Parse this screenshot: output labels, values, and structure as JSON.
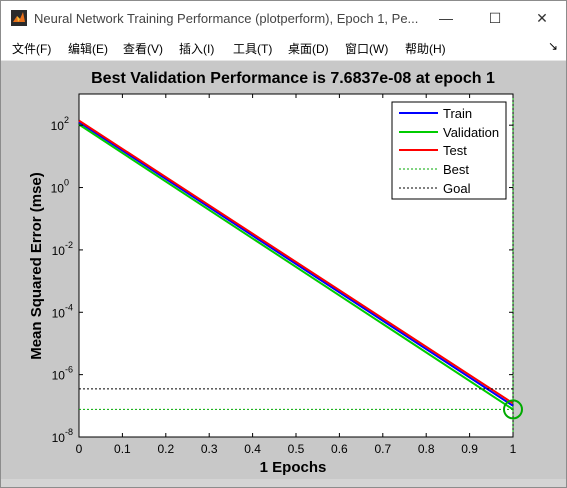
{
  "window": {
    "title": "Neural Network Training Performance (plotperform), Epoch 1, Pe...",
    "minimize_glyph": "—",
    "maximize_glyph": "☐",
    "close_glyph": "✕"
  },
  "menu": {
    "items": [
      {
        "label": "文件(F)"
      },
      {
        "label": "编辑(E)"
      },
      {
        "label": "查看(V)"
      },
      {
        "label": "插入(I)"
      },
      {
        "label": "工具(T)"
      },
      {
        "label": "桌面(D)"
      },
      {
        "label": "窗口(W)"
      },
      {
        "label": "帮助(H)"
      }
    ],
    "dock_glyph": "↘"
  },
  "chart_data": {
    "type": "line",
    "title": "Best Validation Performance is 7.6837e-08 at epoch 1",
    "xlabel": "1 Epochs",
    "ylabel": "Mean Squared Error  (mse)",
    "xscale": "linear",
    "yscale": "log",
    "xlim": [
      0,
      1
    ],
    "ylim": [
      1e-08,
      1000
    ],
    "xticks": [
      "0",
      "0.1",
      "0.2",
      "0.3",
      "0.4",
      "0.5",
      "0.6",
      "0.7",
      "0.8",
      "0.9",
      "1"
    ],
    "yticks": [
      {
        "base": "10",
        "exp": "2",
        "value": 100
      },
      {
        "base": "10",
        "exp": "0",
        "value": 1
      },
      {
        "base": "10",
        "exp": "-2",
        "value": 0.01
      },
      {
        "base": "10",
        "exp": "-4",
        "value": 0.0001
      },
      {
        "base": "10",
        "exp": "-6",
        "value": 1e-06
      },
      {
        "base": "10",
        "exp": "-8",
        "value": 1e-08
      }
    ],
    "series": [
      {
        "name": "Train",
        "color": "#0000ff",
        "style": "solid",
        "x": [
          0,
          1
        ],
        "y": [
          125,
          1e-07
        ]
      },
      {
        "name": "Validation",
        "color": "#00cc00",
        "style": "solid",
        "x": [
          0,
          1
        ],
        "y": [
          105,
          7.6837e-08
        ]
      },
      {
        "name": "Test",
        "color": "#ff0000",
        "style": "solid",
        "x": [
          0,
          1
        ],
        "y": [
          140,
          1.2e-07
        ]
      },
      {
        "name": "Best",
        "color": "#00aa00",
        "style": "dotted",
        "hline": 7.6837e-08,
        "vline": 1
      },
      {
        "name": "Goal",
        "color": "#000000",
        "style": "dotted",
        "hline": 3.5e-07
      }
    ],
    "best_marker": {
      "x": 1,
      "y": 7.6837e-08,
      "color": "#00aa00"
    },
    "legend_position": "top-right",
    "grid": false
  }
}
